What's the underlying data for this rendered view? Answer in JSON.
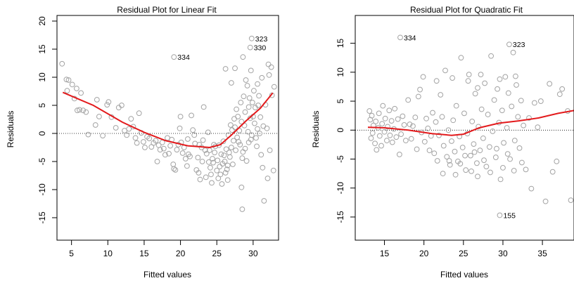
{
  "chart_data": [
    {
      "type": "scatter",
      "title": "Residual Plot for Linear Fit",
      "xlabel": "Fitted values",
      "ylabel": "Residuals",
      "xlim": [
        3,
        33.5
      ],
      "ylim": [
        -19,
        21
      ],
      "xticks": [
        5,
        10,
        15,
        20,
        25,
        30
      ],
      "yticks": [
        -15,
        -10,
        -5,
        0,
        5,
        10,
        15,
        20
      ],
      "reference_line_y": 0,
      "point_color": "#a3a3a3",
      "smooth_color": "#e31a1c",
      "smooth_curve": [
        [
          3.8,
          7.3
        ],
        [
          8,
          5
        ],
        [
          12,
          2
        ],
        [
          15,
          0.2
        ],
        [
          18,
          -1.3
        ],
        [
          21,
          -2.2
        ],
        [
          24,
          -2.5
        ],
        [
          25.5,
          -2
        ],
        [
          27,
          -0.3
        ],
        [
          29,
          2.2
        ],
        [
          31,
          4.5
        ],
        [
          32.7,
          7.2
        ]
      ],
      "annotations": [
        {
          "label": "334",
          "x": 19.1,
          "y": 13.6
        },
        {
          "label": "323",
          "x": 29.8,
          "y": 16.9
        },
        {
          "label": "330",
          "x": 29.6,
          "y": 15.3
        }
      ],
      "points": [
        [
          3.7,
          12.4
        ],
        [
          4.3,
          9.6
        ],
        [
          4.4,
          7.6
        ],
        [
          4.6,
          9.5
        ],
        [
          5.1,
          8.7
        ],
        [
          5.4,
          6.2
        ],
        [
          5.7,
          8.0
        ],
        [
          5.8,
          4.1
        ],
        [
          6.1,
          4.2
        ],
        [
          6.3,
          7.2
        ],
        [
          6.6,
          4.1
        ],
        [
          7.0,
          3.8
        ],
        [
          7.3,
          -0.2
        ],
        [
          8.3,
          1.5
        ],
        [
          8.5,
          6.0
        ],
        [
          8.8,
          3.0
        ],
        [
          9.3,
          -0.4
        ],
        [
          9.9,
          5.1
        ],
        [
          10.1,
          5.6
        ],
        [
          10.5,
          2.9
        ],
        [
          11.1,
          1.0
        ],
        [
          11.5,
          4.6
        ],
        [
          11.9,
          5.0
        ],
        [
          12.3,
          0.5
        ],
        [
          12.6,
          -0.3
        ],
        [
          12.9,
          0.8
        ],
        [
          13.2,
          2.6
        ],
        [
          13.5,
          1.2
        ],
        [
          13.8,
          -0.8
        ],
        [
          14.0,
          -1.7
        ],
        [
          14.3,
          3.6
        ],
        [
          14.6,
          0.1
        ],
        [
          14.9,
          -1.5
        ],
        [
          15.1,
          -2.5
        ],
        [
          15.4,
          -0.6
        ],
        [
          15.7,
          -0.9
        ],
        [
          16.0,
          -2.4
        ],
        [
          16.3,
          -1.7
        ],
        [
          16.6,
          -1.3
        ],
        [
          16.8,
          -5.0
        ],
        [
          17.0,
          -2.1
        ],
        [
          17.2,
          -2.9
        ],
        [
          17.5,
          -1.6
        ],
        [
          17.7,
          -2.7
        ],
        [
          17.9,
          -3.8
        ],
        [
          18.2,
          -0.8
        ],
        [
          18.4,
          -3.6
        ],
        [
          18.6,
          -2.2
        ],
        [
          18.8,
          -1.1
        ],
        [
          19.0,
          -5.5
        ],
        [
          19.1,
          -6.3
        ],
        [
          19.3,
          -6.5
        ],
        [
          19.5,
          -2.9
        ],
        [
          19.7,
          -2.0
        ],
        [
          19.9,
          0.9
        ],
        [
          20.1,
          -1.6
        ],
        [
          20.3,
          -3.5
        ],
        [
          20.5,
          -2.5
        ],
        [
          20.7,
          -4.5
        ],
        [
          20.9,
          -5.8
        ],
        [
          21.1,
          -3.7
        ],
        [
          21.3,
          -4.1
        ],
        [
          21.5,
          3.2
        ],
        [
          21.7,
          0.6
        ],
        [
          21.9,
          -0.3
        ],
        [
          22.0,
          -1.8
        ],
        [
          22.2,
          -6.5
        ],
        [
          22.4,
          -4.3
        ],
        [
          22.5,
          -7.0
        ],
        [
          22.7,
          -8.2
        ],
        [
          22.9,
          -2.5
        ],
        [
          23.0,
          -5.0
        ],
        [
          23.2,
          4.7
        ],
        [
          23.4,
          -3.0
        ],
        [
          23.6,
          -3.6
        ],
        [
          23.8,
          0.2
        ],
        [
          23.9,
          -5.1
        ],
        [
          24.1,
          -6.1
        ],
        [
          24.2,
          -7.3
        ],
        [
          24.4,
          -4.5
        ],
        [
          24.5,
          -5.2
        ],
        [
          24.7,
          -3.4
        ],
        [
          24.8,
          -2.3
        ],
        [
          25.0,
          -6.6
        ],
        [
          25.1,
          -4.8
        ],
        [
          25.2,
          -8.0
        ],
        [
          25.3,
          -2.1
        ],
        [
          25.5,
          -7.3
        ],
        [
          25.6,
          -3.7
        ],
        [
          25.8,
          -5.4
        ],
        [
          25.9,
          -1.4
        ],
        [
          26.1,
          -5.0
        ],
        [
          26.2,
          -7.0
        ],
        [
          26.3,
          -2.8
        ],
        [
          26.5,
          -5.7
        ],
        [
          26.6,
          -0.3
        ],
        [
          26.7,
          -3.4
        ],
        [
          26.9,
          1.5
        ],
        [
          27.0,
          -2.5
        ],
        [
          27.1,
          0.6
        ],
        [
          27.3,
          -1.3
        ],
        [
          27.4,
          2.6
        ],
        [
          27.5,
          1.1
        ],
        [
          27.7,
          4.3
        ],
        [
          27.8,
          -0.7
        ],
        [
          27.9,
          3.0
        ],
        [
          28.1,
          0.5
        ],
        [
          28.2,
          -2.0
        ],
        [
          28.3,
          5.5
        ],
        [
          28.4,
          2.1
        ],
        [
          28.6,
          -3.3
        ],
        [
          28.7,
          6.6
        ],
        [
          28.8,
          1.4
        ],
        [
          28.9,
          3.8
        ],
        [
          29.1,
          -4.9
        ],
        [
          29.2,
          8.5
        ],
        [
          29.3,
          0.3
        ],
        [
          29.4,
          4.7
        ],
        [
          29.5,
          6.3
        ],
        [
          29.6,
          2.7
        ],
        [
          29.7,
          -1.1
        ],
        [
          29.9,
          5.5
        ],
        [
          30.0,
          3.0
        ],
        [
          30.1,
          7.6
        ],
        [
          30.2,
          1.8
        ],
        [
          30.3,
          4.6
        ],
        [
          30.5,
          -2.3
        ],
        [
          30.6,
          0.8
        ],
        [
          30.7,
          5.0
        ],
        [
          30.8,
          6.7
        ],
        [
          31.0,
          2.9
        ],
        [
          31.1,
          -3.8
        ],
        [
          31.3,
          -6.1
        ],
        [
          31.4,
          1.3
        ],
        [
          31.7,
          5.1
        ],
        [
          31.9,
          0.9
        ],
        [
          32.1,
          12.3
        ],
        [
          32.2,
          10.4
        ],
        [
          32.3,
          -3.0
        ],
        [
          32.5,
          11.8
        ],
        [
          32.6,
          6.8
        ],
        [
          32.8,
          -6.6
        ],
        [
          32.9,
          8.3
        ],
        [
          20.0,
          3.0
        ],
        [
          21.0,
          -1.0
        ],
        [
          22.6,
          -2.0
        ],
        [
          23.1,
          -1.2
        ],
        [
          24.0,
          -3.0
        ],
        [
          24.6,
          -2.0
        ],
        [
          25.4,
          -5.9
        ],
        [
          26.0,
          -3.9
        ],
        [
          26.4,
          -6.4
        ],
        [
          26.8,
          -4.2
        ],
        [
          27.2,
          -5.5
        ],
        [
          27.6,
          -3.0
        ],
        [
          28.0,
          -1.5
        ],
        [
          28.5,
          -4.4
        ],
        [
          28.9,
          -2.7
        ],
        [
          29.4,
          -1.6
        ],
        [
          29.8,
          -0.3
        ],
        [
          30.4,
          -0.8
        ],
        [
          30.9,
          0.0
        ],
        [
          23.5,
          -7.8
        ],
        [
          24.3,
          -8.8
        ],
        [
          25.7,
          -9.0
        ],
        [
          26.5,
          -8.3
        ],
        [
          28.4,
          -9.6
        ],
        [
          27.0,
          9.0
        ],
        [
          26.2,
          11.5
        ],
        [
          27.5,
          11.6
        ],
        [
          28.6,
          13.6
        ],
        [
          29.0,
          9.5
        ],
        [
          29.7,
          11.2
        ],
        [
          30.6,
          8.8
        ],
        [
          31.2,
          9.9
        ],
        [
          28.5,
          -13.5
        ],
        [
          31.5,
          -12.0
        ],
        [
          32.0,
          -8.0
        ]
      ]
    },
    {
      "type": "scatter",
      "title": "Residual Plot for Quadratic Fit",
      "xlabel": "Fitted values",
      "ylabel": "Residuals",
      "xlim": [
        11.3,
        39
      ],
      "ylim": [
        -19,
        19.8
      ],
      "xticks": [
        15,
        20,
        25,
        30,
        35
      ],
      "yticks": [
        -15,
        -10,
        -5,
        0,
        5,
        10,
        15
      ],
      "reference_line_y": 0,
      "point_color": "#a3a3a3",
      "smooth_color": "#e31a1c",
      "smooth_curve": [
        [
          12.9,
          0.5
        ],
        [
          15,
          0.4
        ],
        [
          18,
          0.0
        ],
        [
          21,
          -0.6
        ],
        [
          23.5,
          -0.9
        ],
        [
          25,
          -0.7
        ],
        [
          27,
          0.4
        ],
        [
          29.5,
          1.2
        ],
        [
          32,
          1.6
        ],
        [
          34.5,
          2.1
        ],
        [
          37,
          2.9
        ],
        [
          39,
          3.4
        ]
      ],
      "annotations": [
        {
          "label": "334",
          "x": 17.0,
          "y": 16.0
        },
        {
          "label": "323",
          "x": 30.8,
          "y": 14.8
        },
        {
          "label": "155",
          "x": 29.6,
          "y": -14.7
        }
      ],
      "points": [
        [
          13.1,
          3.3
        ],
        [
          13.2,
          1.8
        ],
        [
          13.3,
          -1.4
        ],
        [
          13.4,
          2.5
        ],
        [
          13.5,
          -0.5
        ],
        [
          13.6,
          0.8
        ],
        [
          13.8,
          -2.3
        ],
        [
          13.9,
          1.5
        ],
        [
          14.0,
          -3.4
        ],
        [
          14.2,
          0.4
        ],
        [
          14.3,
          2.9
        ],
        [
          14.4,
          -1.0
        ],
        [
          14.6,
          -2.7
        ],
        [
          14.7,
          1.1
        ],
        [
          14.8,
          4.2
        ],
        [
          15.0,
          -0.3
        ],
        [
          15.1,
          2.0
        ],
        [
          15.3,
          -1.8
        ],
        [
          15.4,
          0.6
        ],
        [
          15.6,
          3.4
        ],
        [
          15.7,
          -0.9
        ],
        [
          15.9,
          1.6
        ],
        [
          16.0,
          -2.1
        ],
        [
          16.2,
          0.2
        ],
        [
          16.3,
          3.7
        ],
        [
          16.5,
          -1.2
        ],
        [
          16.7,
          1.9
        ],
        [
          16.9,
          -4.2
        ],
        [
          17.1,
          -0.7
        ],
        [
          17.3,
          2.4
        ],
        [
          17.5,
          0.9
        ],
        [
          17.7,
          -1.8
        ],
        [
          18.0,
          5.2
        ],
        [
          18.2,
          1.0
        ],
        [
          18.4,
          -1.5
        ],
        [
          18.6,
          0.7
        ],
        [
          18.9,
          2.2
        ],
        [
          19.1,
          -3.3
        ],
        [
          19.3,
          5.8
        ],
        [
          19.5,
          7.0
        ],
        [
          19.7,
          -0.4
        ],
        [
          19.9,
          9.2
        ],
        [
          20.1,
          -2.0
        ],
        [
          20.3,
          2.0
        ],
        [
          20.5,
          0.3
        ],
        [
          20.7,
          -3.5
        ],
        [
          20.9,
          -1.0
        ],
        [
          21.1,
          3.0
        ],
        [
          21.3,
          -4.0
        ],
        [
          21.5,
          1.4
        ],
        [
          21.7,
          -5.3
        ],
        [
          21.9,
          -0.9
        ],
        [
          22.1,
          6.1
        ],
        [
          22.3,
          2.3
        ],
        [
          22.5,
          -2.7
        ],
        [
          22.7,
          10.3
        ],
        [
          22.9,
          -4.6
        ],
        [
          23.1,
          0.0
        ],
        [
          23.3,
          -6.0
        ],
        [
          23.5,
          -1.9
        ],
        [
          23.7,
          1.7
        ],
        [
          23.9,
          -3.7
        ],
        [
          24.1,
          4.2
        ],
        [
          24.3,
          -5.4
        ],
        [
          24.5,
          -1.1
        ],
        [
          24.7,
          12.5
        ],
        [
          24.9,
          -3.0
        ],
        [
          25.1,
          2.9
        ],
        [
          25.3,
          -6.9
        ],
        [
          25.5,
          -0.6
        ],
        [
          25.7,
          9.6
        ],
        [
          25.9,
          -4.4
        ],
        [
          26.1,
          1.5
        ],
        [
          26.3,
          -2.4
        ],
        [
          26.5,
          6.3
        ],
        [
          26.7,
          -5.7
        ],
        [
          26.9,
          0.6
        ],
        [
          27.1,
          -3.5
        ],
        [
          27.3,
          3.6
        ],
        [
          27.5,
          -1.4
        ],
        [
          27.7,
          8.1
        ],
        [
          27.9,
          -6.3
        ],
        [
          28.1,
          2.7
        ],
        [
          28.3,
          -2.9
        ],
        [
          28.5,
          12.8
        ],
        [
          28.7,
          -0.2
        ],
        [
          28.9,
          5.2
        ],
        [
          29.1,
          -4.7
        ],
        [
          29.3,
          7.1
        ],
        [
          29.5,
          1.3
        ],
        [
          29.7,
          -8.5
        ],
        [
          29.9,
          3.4
        ],
        [
          30.1,
          -2.2
        ],
        [
          30.3,
          9.2
        ],
        [
          30.5,
          0.4
        ],
        [
          30.7,
          6.4
        ],
        [
          30.9,
          -5.0
        ],
        [
          31.1,
          4.1
        ],
        [
          31.3,
          13.4
        ],
        [
          31.5,
          -1.8
        ],
        [
          31.7,
          7.8
        ],
        [
          31.9,
          2.3
        ],
        [
          32.1,
          -3.1
        ],
        [
          32.3,
          5.1
        ],
        [
          32.6,
          0.8
        ],
        [
          32.9,
          -6.8
        ],
        [
          33.3,
          2.1
        ],
        [
          33.6,
          -10.1
        ],
        [
          34.0,
          4.7
        ],
        [
          34.4,
          0.5
        ],
        [
          34.8,
          5.0
        ],
        [
          35.4,
          -12.3
        ],
        [
          35.9,
          8.0
        ],
        [
          36.3,
          -7.2
        ],
        [
          36.8,
          -5.4
        ],
        [
          37.2,
          6.2
        ],
        [
          37.5,
          7.1
        ],
        [
          38.6,
          -12.1
        ],
        [
          38.2,
          3.3
        ],
        [
          22.4,
          -7.5
        ],
        [
          23.2,
          -5.3
        ],
        [
          24.0,
          -7.7
        ],
        [
          24.6,
          -5.8
        ],
        [
          25.2,
          -4.4
        ],
        [
          26.0,
          -7.1
        ],
        [
          26.4,
          -3.8
        ],
        [
          26.8,
          -8.0
        ],
        [
          27.6,
          -5.2
        ],
        [
          28.4,
          -7.3
        ],
        [
          29.2,
          -3.2
        ],
        [
          30.0,
          -6.5
        ],
        [
          30.6,
          -4.1
        ],
        [
          31.4,
          -7.0
        ],
        [
          32.4,
          -5.6
        ],
        [
          21.6,
          8.5
        ],
        [
          23.6,
          9.0
        ],
        [
          25.6,
          8.5
        ],
        [
          26.8,
          7.3
        ],
        [
          27.2,
          9.6
        ],
        [
          29.6,
          8.8
        ],
        [
          31.6,
          9.3
        ]
      ]
    }
  ]
}
